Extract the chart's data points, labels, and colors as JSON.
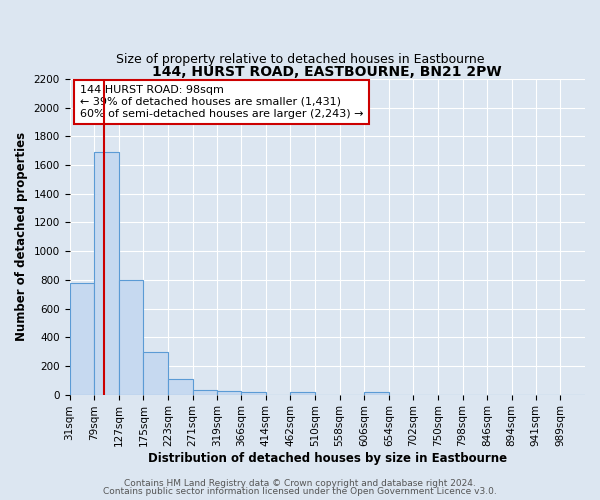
{
  "title": "144, HURST ROAD, EASTBOURNE, BN21 2PW",
  "subtitle": "Size of property relative to detached houses in Eastbourne",
  "xlabel": "Distribution of detached houses by size in Eastbourne",
  "ylabel": "Number of detached properties",
  "bar_labels": [
    "31sqm",
    "79sqm",
    "127sqm",
    "175sqm",
    "223sqm",
    "271sqm",
    "319sqm",
    "366sqm",
    "414sqm",
    "462sqm",
    "510sqm",
    "558sqm",
    "606sqm",
    "654sqm",
    "702sqm",
    "750sqm",
    "798sqm",
    "846sqm",
    "894sqm",
    "941sqm",
    "989sqm"
  ],
  "bar_values": [
    775,
    1690,
    800,
    295,
    112,
    35,
    25,
    20,
    0,
    15,
    0,
    0,
    15,
    0,
    0,
    0,
    0,
    0,
    0,
    0,
    0
  ],
  "bar_color": "#c6d9f0",
  "bar_edge_color": "#5b9bd5",
  "property_line_x": 98,
  "bin_edges": [
    31,
    79,
    127,
    175,
    223,
    271,
    319,
    366,
    414,
    462,
    510,
    558,
    606,
    654,
    702,
    750,
    798,
    846,
    894,
    941,
    989,
    1037
  ],
  "annotation_title": "144 HURST ROAD: 98sqm",
  "annotation_line1": "← 39% of detached houses are smaller (1,431)",
  "annotation_line2": "60% of semi-detached houses are larger (2,243) →",
  "annotation_box_color": "#ffffff",
  "annotation_box_edge_color": "#cc0000",
  "red_line_color": "#cc0000",
  "ylim": [
    0,
    2200
  ],
  "yticks": [
    0,
    200,
    400,
    600,
    800,
    1000,
    1200,
    1400,
    1600,
    1800,
    2000,
    2200
  ],
  "footer1": "Contains HM Land Registry data © Crown copyright and database right 2024.",
  "footer2": "Contains public sector information licensed under the Open Government Licence v3.0.",
  "bg_color": "#dce6f1",
  "plot_bg_color": "#dce6f1",
  "grid_color": "#ffffff",
  "title_fontsize": 10,
  "subtitle_fontsize": 9,
  "axis_label_fontsize": 8.5,
  "tick_fontsize": 7.5,
  "annotation_fontsize": 8,
  "footer_fontsize": 6.5
}
